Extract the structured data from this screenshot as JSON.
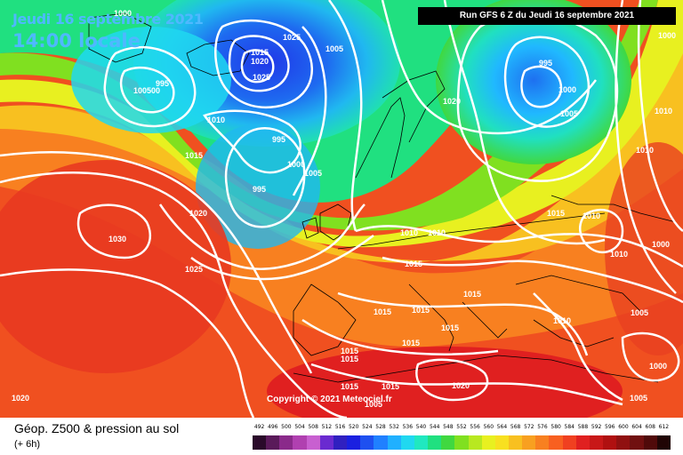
{
  "header": {
    "date": "Jeudi 16 septembre 2021",
    "local_time": "14:00 locale",
    "run_info": "Run GFS 6 Z du Jeudi 16 septembre 2021"
  },
  "copyright": "Copyright © 2021 Meteociel.fr",
  "footer": {
    "title": "Géop. Z500 & pression au sol",
    "subtitle": "(+ 6h)"
  },
  "legend": {
    "values": [
      "492",
      "496",
      "500",
      "504",
      "508",
      "512",
      "516",
      "520",
      "524",
      "528",
      "532",
      "536",
      "540",
      "544",
      "548",
      "552",
      "556",
      "560",
      "564",
      "568",
      "572",
      "576",
      "580",
      "584",
      "588",
      "592",
      "596",
      "600",
      "604",
      "608",
      "612"
    ],
    "colors": [
      "#2a0a2a",
      "#5a1a5a",
      "#8a2a8a",
      "#b040b0",
      "#c860d0",
      "#6a2ad0",
      "#3020c0",
      "#1a20e0",
      "#1e50f0",
      "#2080ff",
      "#20b0ff",
      "#20d8f0",
      "#20e8c0",
      "#20e080",
      "#40d840",
      "#80e020",
      "#b8e820",
      "#e8f020",
      "#f8e020",
      "#f8c020",
      "#f8a020",
      "#f88020",
      "#f86020",
      "#f04020",
      "#e02020",
      "#c81818",
      "#b01010",
      "#901010",
      "#701010",
      "#500a0a",
      "#200505"
    ]
  },
  "isobar_labels": [
    {
      "text": "1000"
    },
    {
      "text": "1025"
    },
    {
      "text": "1005"
    },
    {
      "text": "995"
    },
    {
      "text": "1015"
    },
    {
      "text": "1020"
    },
    {
      "text": "1025"
    },
    {
      "text": "1010"
    },
    {
      "text": "995"
    },
    {
      "text": "1000"
    },
    {
      "text": "1005"
    },
    {
      "text": "995"
    },
    {
      "text": "1015"
    },
    {
      "text": "1020"
    },
    {
      "text": "1025"
    },
    {
      "text": "1030"
    },
    {
      "text": "1020"
    },
    {
      "text": "995"
    },
    {
      "text": "1000"
    },
    {
      "text": "1005"
    },
    {
      "text": "1010"
    },
    {
      "text": "1010"
    },
    {
      "text": "1010"
    },
    {
      "text": "1015"
    },
    {
      "text": "1010"
    },
    {
      "text": "1010"
    },
    {
      "text": "1000"
    },
    {
      "text": "1005"
    },
    {
      "text": "1010"
    },
    {
      "text": "1015"
    },
    {
      "text": "1015"
    },
    {
      "text": "1015"
    },
    {
      "text": "1015"
    },
    {
      "text": "1015"
    },
    {
      "text": "1015"
    },
    {
      "text": "1015"
    },
    {
      "text": "1020"
    },
    {
      "text": "1005"
    },
    {
      "text": "1000"
    },
    {
      "text": "1020"
    },
    {
      "text": "1010"
    },
    {
      "text": "1010"
    },
    {
      "text": "1000"
    },
    {
      "text": "1005"
    },
    {
      "text": "1000"
    },
    {
      "text": "995"
    },
    {
      "text": "1005"
    },
    {
      "text": "1010"
    },
    {
      "text": "1010"
    },
    {
      "text": "1015"
    },
    {
      "text": "1015"
    },
    {
      "text": "1015"
    },
    {
      "text": "100500"
    },
    {
      "text": "1005"
    }
  ]
}
